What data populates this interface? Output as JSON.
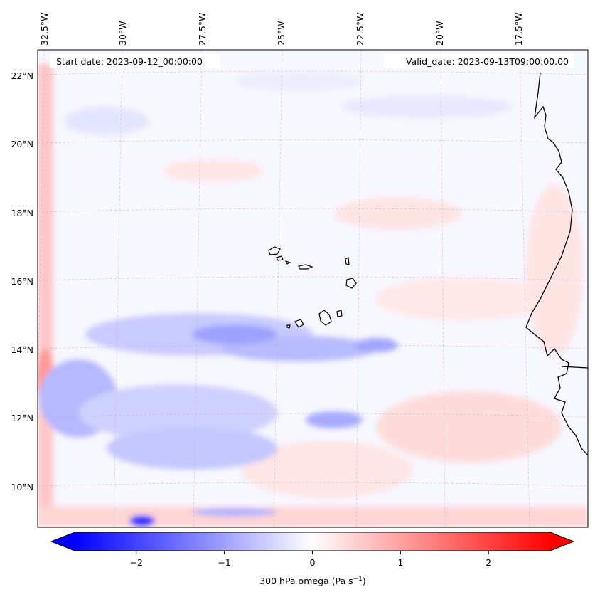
{
  "map": {
    "start_date_text": "Start date: 2023-09-12_00:00:00",
    "valid_date_text": "Valid_date: 2023-09-13T09:00:00.00",
    "lon_labels": [
      "32.5°W",
      "30°W",
      "27.5°W",
      "25°W",
      "22.5°W",
      "20°W",
      "17.5°W"
    ],
    "lat_labels": [
      "22°N",
      "20°N",
      "18°N",
      "16°N",
      "14°N",
      "12°N",
      "10°N"
    ],
    "colors": {
      "negative": "#0000ff",
      "zero": "#ffffff",
      "positive": "#ff0000",
      "coastline": "#000000",
      "gridline": "#b0b0b0"
    }
  },
  "colorbar": {
    "label": "300 hPa omega (Pa s⁻¹)",
    "label_main": "300 hPa omega (Pa s",
    "label_sup": "−1",
    "label_close": ")",
    "ticks": [
      "−2",
      "−1",
      "0",
      "1",
      "2"
    ],
    "tick_values": [
      -2,
      -1,
      0,
      1,
      2
    ],
    "range": [
      -2.7,
      2.7
    ],
    "extend": "both"
  }
}
